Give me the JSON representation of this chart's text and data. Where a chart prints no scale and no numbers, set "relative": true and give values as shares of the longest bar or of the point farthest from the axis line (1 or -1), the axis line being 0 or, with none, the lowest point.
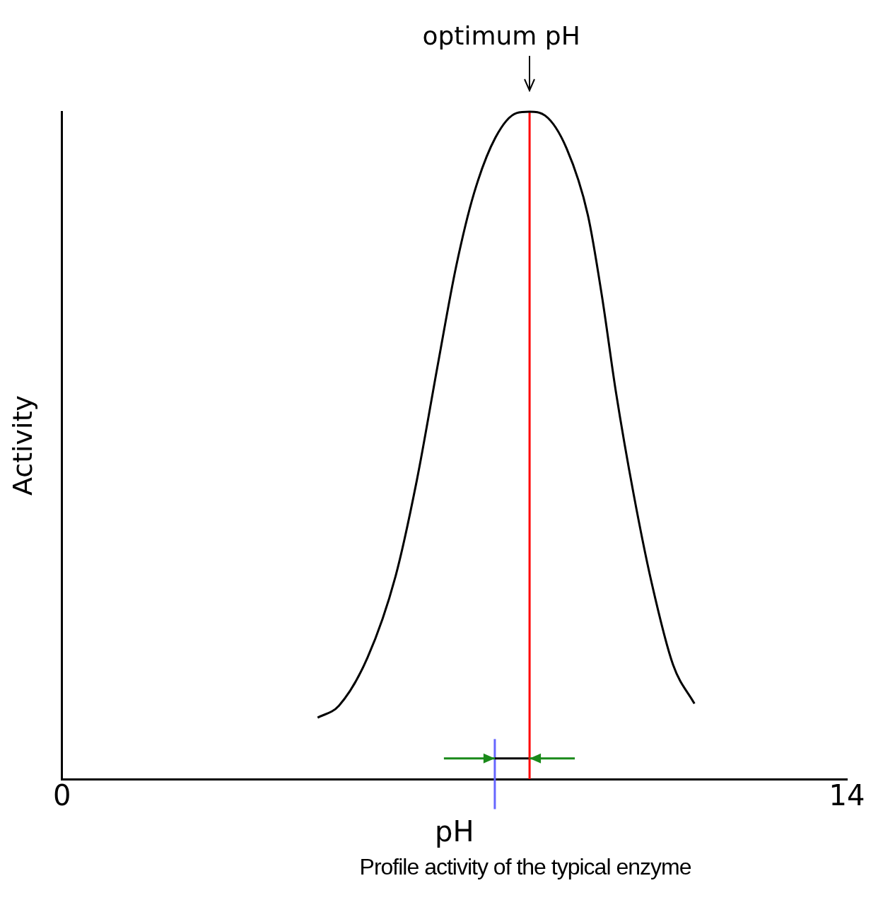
{
  "chart_data": {
    "type": "line",
    "relative": true,
    "xlabel": "pH",
    "ylabel": "Activity",
    "xlim": [
      0,
      14
    ],
    "xticks": [
      0,
      14
    ],
    "tick_labels": "x",
    "grid": false,
    "legend": false,
    "marker": "none",
    "line_style": "solid",
    "series": [
      {
        "color": "#000000",
        "x": [
          4.56,
          4.94,
          5.45,
          5.95,
          6.33,
          6.71,
          7.03,
          7.35,
          7.73,
          8.11,
          8.34,
          8.62,
          9.0,
          9.38,
          9.63,
          9.88,
          10.2,
          10.52,
          10.9,
          11.28
        ],
        "values": [
          0.092,
          0.11,
          0.182,
          0.304,
          0.448,
          0.624,
          0.768,
          0.878,
          0.961,
          0.998,
          1,
          0.994,
          0.945,
          0.845,
          0.724,
          0.58,
          0.425,
          0.293,
          0.171,
          0.113
        ]
      },
      {
        "color": "#ff0000",
        "x": [
          8.34,
          8.34
        ],
        "values": [
          0,
          1
        ]
      },
      {
        "color": "#000000",
        "x": [
          7.72,
          8.34
        ],
        "values": [
          0.031,
          0.031
        ]
      },
      {
        "color": "#6666ff",
        "x": [
          7.72,
          7.72
        ],
        "values": [
          -0.045,
          0.06
        ]
      }
    ],
    "annotations": [
      {
        "text": "optimum pH",
        "x": 8.34,
        "y": 1
      },
      "Profile activity of the typical enzyme"
    ]
  }
}
